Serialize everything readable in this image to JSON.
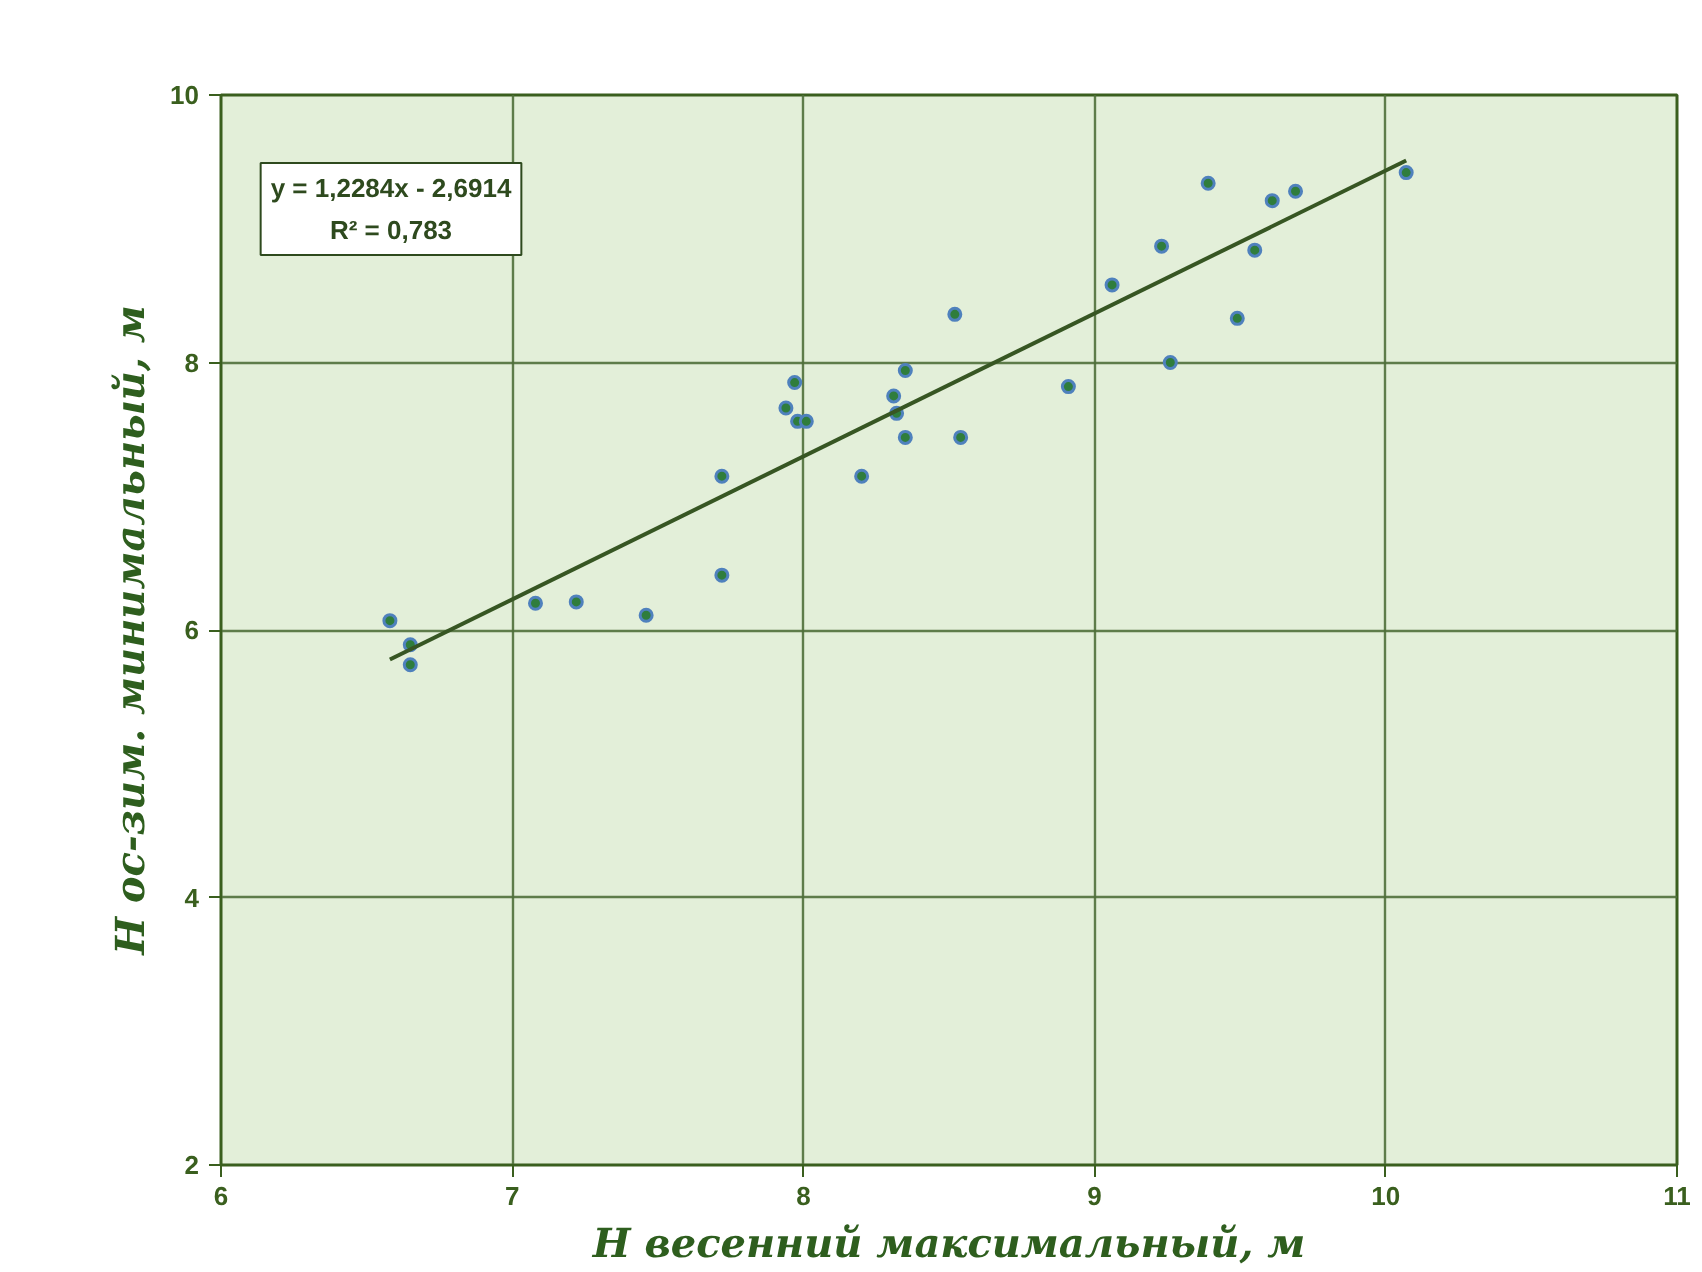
{
  "chart_data": {
    "type": "scatter",
    "xlabel": "H весенний максимальный, м",
    "ylabel": "H ос-зим. минимальный, м",
    "xlim": [
      6,
      11
    ],
    "ylim": [
      2,
      10
    ],
    "xticks": [
      6,
      7,
      8,
      9,
      10,
      11
    ],
    "yticks": [
      2,
      4,
      6,
      8,
      10
    ],
    "grid": true,
    "annotations": [
      "y = 1,2284x - 2,6914\nR² = 0,783"
    ],
    "series": [
      {
        "marker": "circle",
        "color": "#4f81bd",
        "x": [
          6.58,
          6.65,
          6.65,
          7.08,
          7.22,
          7.46,
          7.72,
          7.72,
          7.94,
          7.97,
          7.98,
          8.01,
          8.2,
          8.31,
          8.32,
          8.35,
          8.35,
          8.54,
          8.52,
          8.91,
          9.06,
          9.23,
          9.26,
          9.39,
          9.49,
          9.55,
          9.61,
          9.69,
          10.07
        ],
        "values": [
          6.07,
          5.89,
          5.74,
          6.2,
          6.21,
          6.11,
          7.15,
          6.41,
          7.66,
          7.85,
          7.56,
          7.56,
          7.15,
          7.75,
          7.62,
          7.94,
          7.44,
          7.44,
          8.36,
          7.82,
          8.58,
          8.87,
          8.0,
          9.34,
          8.33,
          8.84,
          9.21,
          9.28,
          9.42
        ]
      },
      {
        "type": "line",
        "color": "#375623",
        "x": [
          6.58,
          10.07
        ],
        "values": [
          5.78,
          9.51
        ]
      }
    ]
  }
}
